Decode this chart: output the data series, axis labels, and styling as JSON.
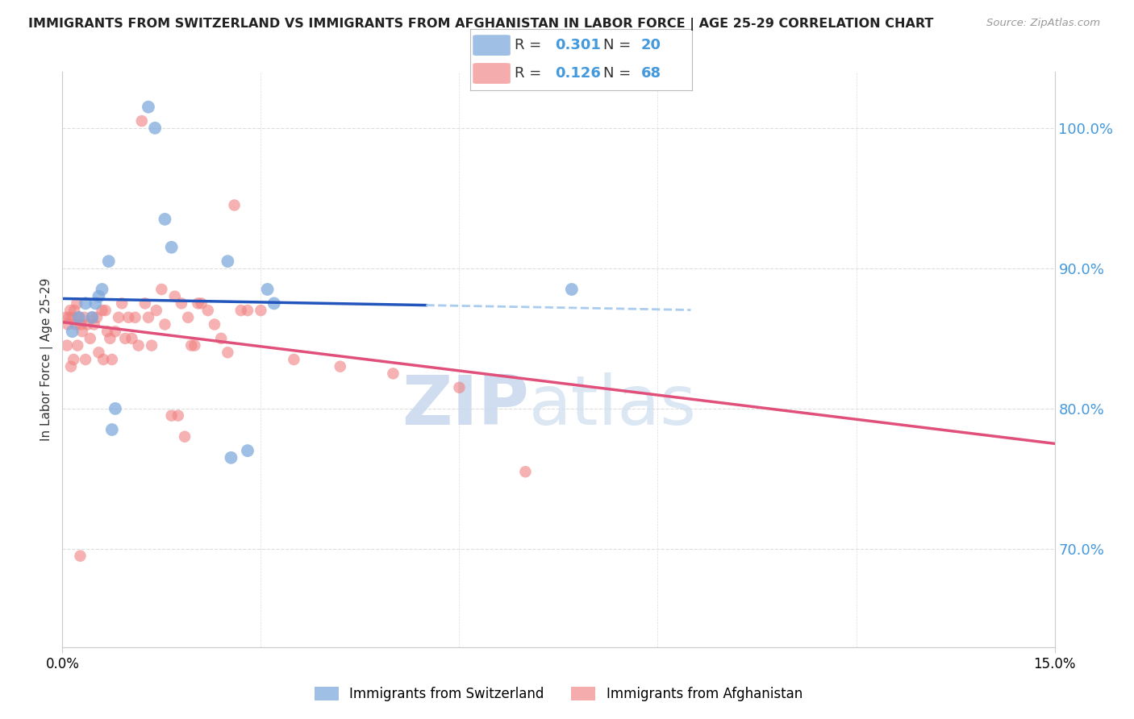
{
  "title": "IMMIGRANTS FROM SWITZERLAND VS IMMIGRANTS FROM AFGHANISTAN IN LABOR FORCE | AGE 25-29 CORRELATION CHART",
  "source": "Source: ZipAtlas.com",
  "ylabel": "In Labor Force | Age 25-29",
  "xlim": [
    0.0,
    15.0
  ],
  "ylim": [
    63.0,
    104.0
  ],
  "yticks": [
    70.0,
    80.0,
    90.0,
    100.0
  ],
  "ytick_labels": [
    "70.0%",
    "80.0%",
    "90.0%",
    "100.0%"
  ],
  "xtick_left": "0.0%",
  "xtick_right": "15.0%",
  "r_swiss": 0.301,
  "n_swiss": 20,
  "r_afghan": 0.126,
  "n_afghan": 68,
  "color_swiss": "#7faadc",
  "color_afghan": "#f08080",
  "color_line_swiss": "#2255bb",
  "color_line_swiss_dash": "#aaccee",
  "color_line_afghan": "#e0507a",
  "color_ytick": "#4499dd",
  "color_grid": "#dddddd",
  "watermark_zip": "ZIP",
  "watermark_atlas": "atlas",
  "background": "#ffffff",
  "swiss_x": [
    0.15,
    0.25,
    0.35,
    0.45,
    0.5,
    0.55,
    0.6,
    0.7,
    0.75,
    0.8,
    1.3,
    1.4,
    1.55,
    1.65,
    2.5,
    2.55,
    2.8,
    3.1,
    3.2,
    7.7
  ],
  "swiss_y": [
    85.5,
    86.5,
    87.5,
    86.5,
    87.5,
    88.0,
    88.5,
    90.5,
    78.5,
    80.0,
    101.5,
    100.0,
    93.5,
    91.5,
    90.5,
    76.5,
    77.0,
    88.5,
    87.5,
    88.5
  ],
  "afghan_x": [
    0.05,
    0.08,
    0.1,
    0.12,
    0.15,
    0.18,
    0.2,
    0.22,
    0.25,
    0.28,
    0.3,
    0.33,
    0.35,
    0.38,
    0.42,
    0.45,
    0.48,
    0.52,
    0.55,
    0.6,
    0.62,
    0.65,
    0.68,
    0.72,
    0.75,
    0.8,
    0.85,
    0.9,
    0.95,
    1.0,
    1.05,
    1.1,
    1.15,
    1.2,
    1.25,
    1.3,
    1.35,
    1.42,
    1.5,
    1.55,
    1.65,
    1.7,
    1.75,
    1.8,
    1.85,
    1.9,
    1.95,
    2.0,
    2.05,
    2.1,
    2.2,
    2.3,
    2.4,
    2.5,
    2.6,
    2.7,
    2.8,
    3.0,
    3.5,
    4.2,
    5.0,
    6.0,
    7.0,
    0.07,
    0.13,
    0.17,
    0.23,
    0.27
  ],
  "afghan_y": [
    86.5,
    86.0,
    86.5,
    87.0,
    86.5,
    87.0,
    86.0,
    87.5,
    86.5,
    86.0,
    85.5,
    86.5,
    83.5,
    86.0,
    85.0,
    86.5,
    86.0,
    86.5,
    84.0,
    87.0,
    83.5,
    87.0,
    85.5,
    85.0,
    83.5,
    85.5,
    86.5,
    87.5,
    85.0,
    86.5,
    85.0,
    86.5,
    84.5,
    100.5,
    87.5,
    86.5,
    84.5,
    87.0,
    88.5,
    86.0,
    79.5,
    88.0,
    79.5,
    87.5,
    78.0,
    86.5,
    84.5,
    84.5,
    87.5,
    87.5,
    87.0,
    86.0,
    85.0,
    84.0,
    94.5,
    87.0,
    87.0,
    87.0,
    83.5,
    83.0,
    82.5,
    81.5,
    75.5,
    84.5,
    83.0,
    83.5,
    84.5,
    69.5
  ]
}
